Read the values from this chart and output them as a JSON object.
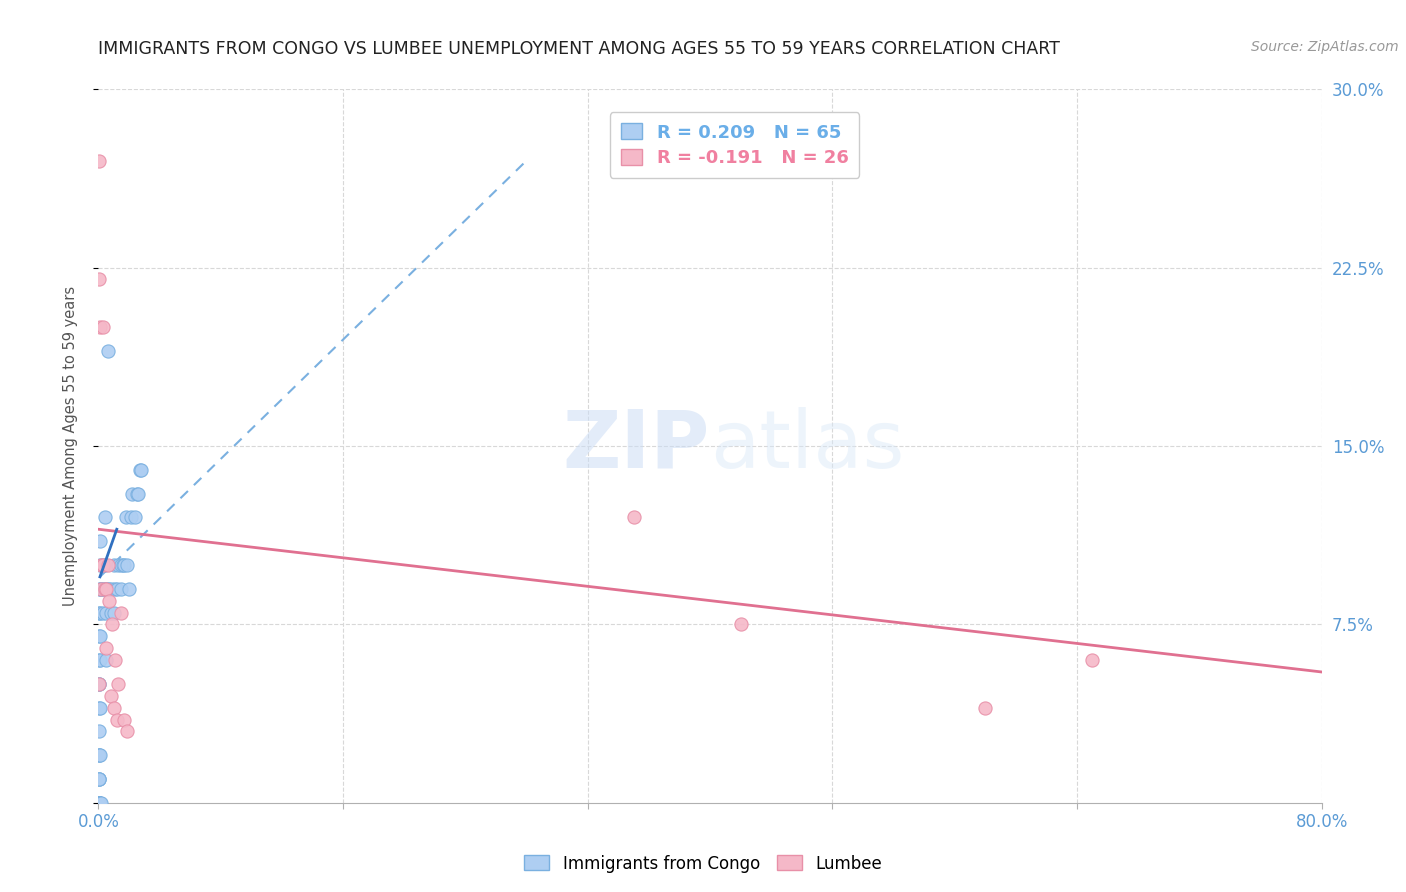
{
  "title": "IMMIGRANTS FROM CONGO VS LUMBEE UNEMPLOYMENT AMONG AGES 55 TO 59 YEARS CORRELATION CHART",
  "source": "Source: ZipAtlas.com",
  "ylabel": "Unemployment Among Ages 55 to 59 years",
  "watermark_zip": "ZIP",
  "watermark_atlas": "atlas",
  "legend_entries": [
    {
      "label": "R = 0.209   N = 65",
      "color": "#6aaee8"
    },
    {
      "label": "R = -0.191   N = 26",
      "color": "#f080a0"
    }
  ],
  "legend_labels": [
    "Immigrants from Congo",
    "Lumbee"
  ],
  "xlim": [
    0,
    0.8
  ],
  "ylim": [
    0,
    0.3
  ],
  "xticks": [
    0.0,
    0.16,
    0.32,
    0.48,
    0.64,
    0.8
  ],
  "xtick_labels": [
    "0.0%",
    "",
    "",
    "",
    "",
    "80.0%"
  ],
  "yticks_right": [
    0.0,
    0.075,
    0.15,
    0.225,
    0.3
  ],
  "ytick_labels_right": [
    "",
    "7.5%",
    "15.0%",
    "22.5%",
    "30.0%"
  ],
  "axis_color": "#5b9bd5",
  "blue_scatter": {
    "x": [
      0.0005,
      0.0005,
      0.0005,
      0.0005,
      0.0005,
      0.0005,
      0.0005,
      0.0005,
      0.0005,
      0.0005,
      0.0005,
      0.0005,
      0.0005,
      0.0005,
      0.0005,
      0.0005,
      0.0005,
      0.0005,
      0.0005,
      0.0005,
      0.001,
      0.001,
      0.001,
      0.001,
      0.001,
      0.001,
      0.001,
      0.001,
      0.001,
      0.001,
      0.002,
      0.002,
      0.003,
      0.003,
      0.004,
      0.004,
      0.005,
      0.005,
      0.005,
      0.006,
      0.007,
      0.008,
      0.009,
      0.01,
      0.01,
      0.011,
      0.012,
      0.013,
      0.015,
      0.015,
      0.016,
      0.017,
      0.018,
      0.019,
      0.02,
      0.021,
      0.022,
      0.024,
      0.025,
      0.026,
      0.027,
      0.028,
      0.003,
      0.004,
      0.006
    ],
    "y": [
      0.0,
      0.0,
      0.0,
      0.0,
      0.0,
      0.0,
      0.0,
      0.0,
      0.01,
      0.01,
      0.01,
      0.02,
      0.02,
      0.03,
      0.04,
      0.05,
      0.05,
      0.06,
      0.07,
      0.08,
      0.0,
      0.02,
      0.04,
      0.06,
      0.07,
      0.08,
      0.09,
      0.09,
      0.1,
      0.11,
      0.0,
      0.09,
      0.08,
      0.09,
      0.09,
      0.1,
      0.06,
      0.08,
      0.09,
      0.09,
      0.09,
      0.08,
      0.09,
      0.08,
      0.1,
      0.09,
      0.09,
      0.1,
      0.09,
      0.1,
      0.1,
      0.1,
      0.12,
      0.1,
      0.09,
      0.12,
      0.13,
      0.12,
      0.13,
      0.13,
      0.14,
      0.14,
      0.1,
      0.12,
      0.19
    ]
  },
  "pink_scatter": {
    "x": [
      0.0005,
      0.0005,
      0.0005,
      0.001,
      0.002,
      0.002,
      0.003,
      0.003,
      0.004,
      0.005,
      0.005,
      0.006,
      0.007,
      0.008,
      0.009,
      0.01,
      0.011,
      0.012,
      0.013,
      0.015,
      0.017,
      0.019,
      0.35,
      0.42,
      0.58,
      0.65
    ],
    "y": [
      0.27,
      0.22,
      0.05,
      0.2,
      0.1,
      0.09,
      0.1,
      0.2,
      0.09,
      0.065,
      0.09,
      0.1,
      0.085,
      0.045,
      0.075,
      0.04,
      0.06,
      0.035,
      0.05,
      0.08,
      0.035,
      0.03,
      0.12,
      0.075,
      0.04,
      0.06
    ]
  },
  "blue_trendline": {
    "x": [
      0.001,
      0.28
    ],
    "y": [
      0.095,
      0.27
    ]
  },
  "pink_trendline": {
    "x": [
      0.0,
      0.8
    ],
    "y": [
      0.115,
      0.055
    ]
  },
  "blue_solid_line": {
    "x": [
      0.001,
      0.012
    ],
    "y": [
      0.095,
      0.115
    ]
  }
}
